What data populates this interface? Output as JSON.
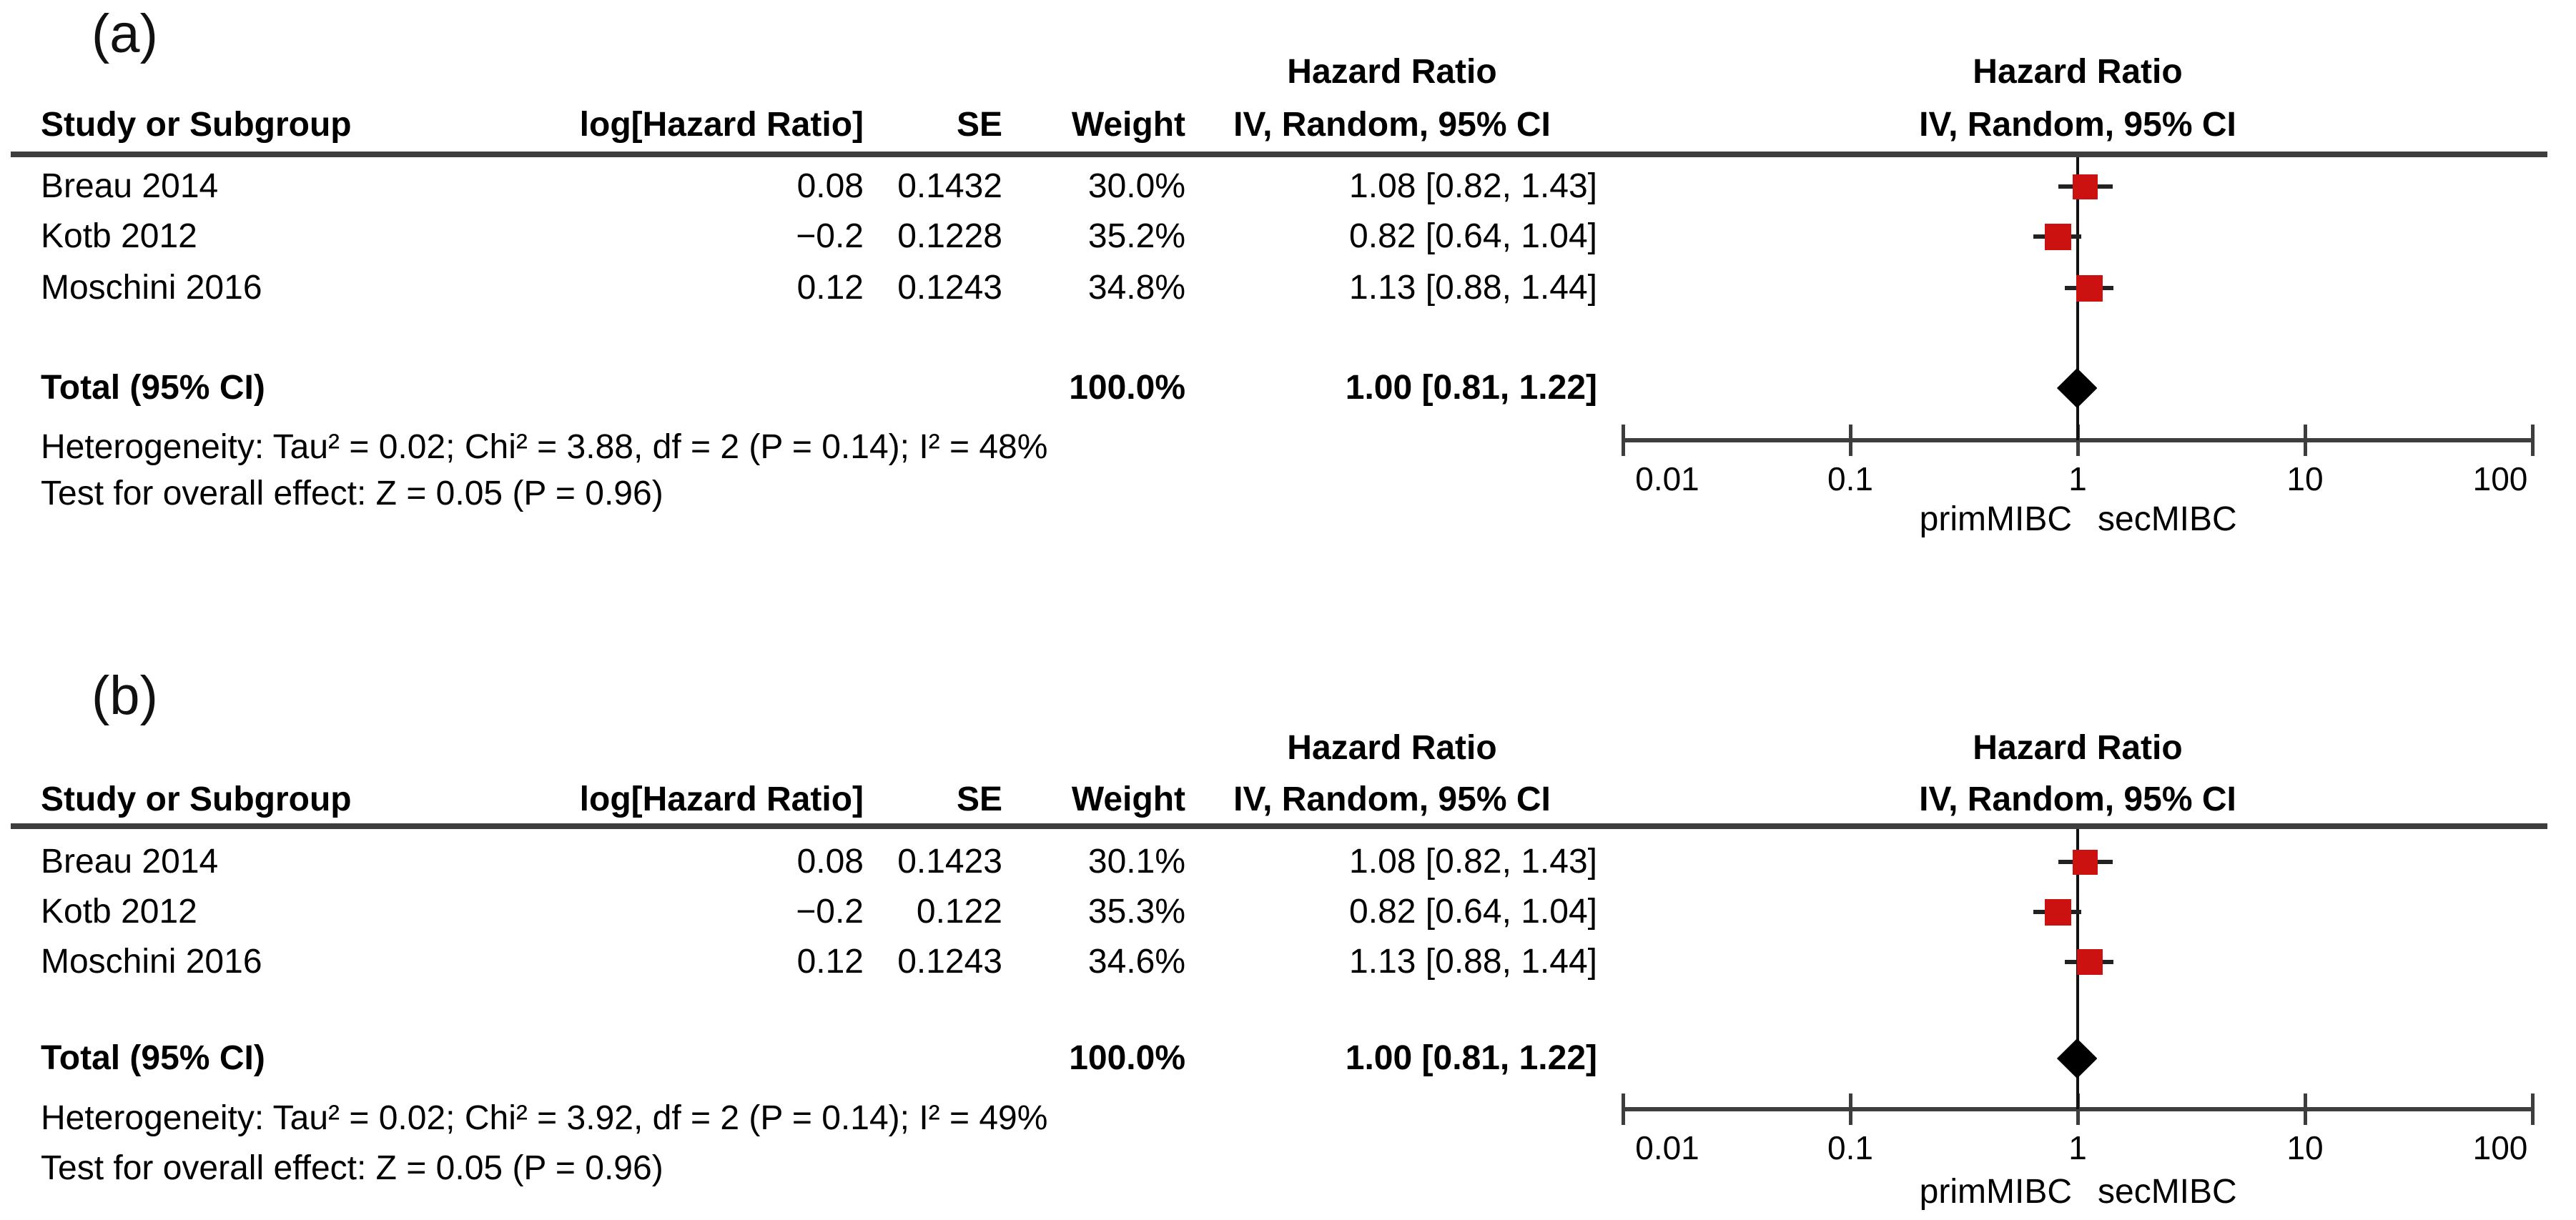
{
  "accent_colors": {
    "marker_red": "#cc1111",
    "line_dark": "#3d3d3d",
    "diamond_black": "#000000"
  },
  "panels": [
    {
      "label": "(a)",
      "effect_header": "Hazard Ratio",
      "model_header": "IV, Random, 95% CI",
      "study_header": "Study or Subgroup",
      "loghr_header": "log[Hazard Ratio]",
      "se_header": "SE",
      "weight_header": "Weight",
      "rows": [
        {
          "study": "Breau 2014",
          "log_hr": "0.08",
          "se": "0.1432",
          "weight": "30.0%",
          "ci": "1.08 [0.82, 1.43]"
        },
        {
          "study": "Kotb 2012",
          "log_hr": "−0.2",
          "se": "0.1228",
          "weight": "35.2%",
          "ci": "0.82 [0.64, 1.04]"
        },
        {
          "study": "Moschini 2016",
          "log_hr": "0.12",
          "se": "0.1243",
          "weight": "34.8%",
          "ci": "1.13 [0.88, 1.44]"
        }
      ],
      "total": {
        "label": "Total (95% CI)",
        "weight": "100.0%",
        "ci": "1.00 [0.81, 1.22]"
      },
      "heterogeneity": "Heterogeneity: Tau² = 0.02; Chi² = 3.88, df = 2 (P = 0.14); I² = 48%",
      "overall_effect": "Test for overall effect: Z = 0.05 (P = 0.96)",
      "xlabel_left": "primMIBC",
      "xlabel_right": "secMIBC"
    },
    {
      "label": "(b)",
      "effect_header": "Hazard Ratio",
      "model_header": "IV, Random, 95% CI",
      "study_header": "Study or Subgroup",
      "loghr_header": "log[Hazard Ratio]",
      "se_header": "SE",
      "weight_header": "Weight",
      "rows": [
        {
          "study": "Breau 2014",
          "log_hr": "0.08",
          "se": "0.1423",
          "weight": "30.1%",
          "ci": "1.08 [0.82, 1.43]"
        },
        {
          "study": "Kotb 2012",
          "log_hr": "−0.2",
          "se": "0.122",
          "weight": "35.3%",
          "ci": "0.82 [0.64, 1.04]"
        },
        {
          "study": "Moschini 2016",
          "log_hr": "0.12",
          "se": "0.1243",
          "weight": "34.6%",
          "ci": "1.13 [0.88, 1.44]"
        }
      ],
      "total": {
        "label": "Total (95% CI)",
        "weight": "100.0%",
        "ci": "1.00 [0.81, 1.22]"
      },
      "heterogeneity": "Heterogeneity: Tau² = 0.02; Chi² = 3.92, df = 2 (P = 0.14); I² = 49%",
      "overall_effect": "Test for overall effect: Z = 0.05 (P = 0.96)",
      "xlabel_left": "primMIBC",
      "xlabel_right": "secMIBC"
    }
  ],
  "chart_data": [
    {
      "type": "scatter",
      "subtype": "forest-plot",
      "panel": "(a)",
      "title": "Hazard Ratio IV, Random, 95% CI",
      "x_scale": "log10",
      "x_ticks": [
        0.01,
        0.1,
        1,
        10,
        100
      ],
      "x_axis_labels": {
        "left": "primMIBC",
        "right": "secMIBC"
      },
      "studies": [
        {
          "name": "Breau 2014",
          "log_hr": 0.08,
          "se": 0.1432,
          "weight_pct": 30.0,
          "hr": 1.08,
          "ci95": [
            0.82,
            1.43
          ]
        },
        {
          "name": "Kotb 2012",
          "log_hr": -0.2,
          "se": 0.1228,
          "weight_pct": 35.2,
          "hr": 0.82,
          "ci95": [
            0.64,
            1.04
          ]
        },
        {
          "name": "Moschini 2016",
          "log_hr": 0.12,
          "se": 0.1243,
          "weight_pct": 34.8,
          "hr": 1.13,
          "ci95": [
            0.88,
            1.44
          ]
        }
      ],
      "total": {
        "label": "Total (95% CI)",
        "weight_pct": 100.0,
        "hr": 1.0,
        "ci95": [
          0.81,
          1.22
        ]
      },
      "heterogeneity": "Tau² = 0.02; Chi² = 3.88, df = 2 (P = 0.14); I² = 48%",
      "overall_effect": "Z = 0.05 (P = 0.96)"
    },
    {
      "type": "scatter",
      "subtype": "forest-plot",
      "panel": "(b)",
      "title": "Hazard Ratio IV, Random, 95% CI",
      "x_scale": "log10",
      "x_ticks": [
        0.01,
        0.1,
        1,
        10,
        100
      ],
      "x_axis_labels": {
        "left": "primMIBC",
        "right": "secMIBC"
      },
      "studies": [
        {
          "name": "Breau 2014",
          "log_hr": 0.08,
          "se": 0.1423,
          "weight_pct": 30.1,
          "hr": 1.08,
          "ci95": [
            0.82,
            1.43
          ]
        },
        {
          "name": "Kotb 2012",
          "log_hr": -0.2,
          "se": 0.122,
          "weight_pct": 35.3,
          "hr": 0.82,
          "ci95": [
            0.64,
            1.04
          ]
        },
        {
          "name": "Moschini 2016",
          "log_hr": 0.12,
          "se": 0.1243,
          "weight_pct": 34.6,
          "hr": 1.13,
          "ci95": [
            0.88,
            1.44
          ]
        }
      ],
      "total": {
        "label": "Total (95% CI)",
        "weight_pct": 100.0,
        "hr": 1.0,
        "ci95": [
          0.81,
          1.22
        ]
      },
      "heterogeneity": "Tau² = 0.02; Chi² = 3.92, df = 2 (P = 0.14); I² = 49%",
      "overall_effect": "Z = 0.05 (P = 0.96)"
    }
  ]
}
